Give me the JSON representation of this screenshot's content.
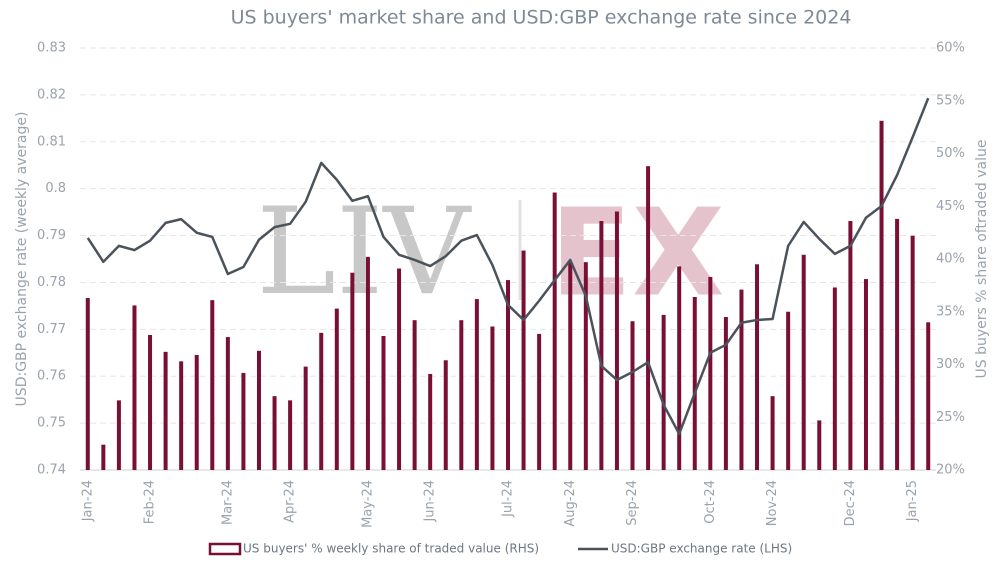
{
  "chart_data": {
    "type": "bar-line",
    "title": "US buyers' market share and USD:GBP exchange rate since 2024",
    "ylabel": "USD:GBP exchange rate (weekly average)",
    "y2label": "US buyers % share oftraded value",
    "watermark": [
      "LIV",
      "EX"
    ],
    "categories": [
      "Jan-24",
      null,
      null,
      null,
      "Feb-24",
      null,
      null,
      null,
      null,
      "Mar-24",
      null,
      null,
      null,
      "Apr-24",
      null,
      null,
      null,
      null,
      "May-24",
      null,
      null,
      null,
      "Jun-24",
      null,
      null,
      null,
      null,
      "Jul-24",
      null,
      null,
      null,
      "Aug-24",
      null,
      null,
      null,
      "Sep-24",
      null,
      null,
      null,
      null,
      "Oct-24",
      null,
      null,
      null,
      "Nov-24",
      null,
      null,
      null,
      null,
      "Dec-24",
      null,
      null,
      null,
      "Jan-25",
      null
    ],
    "series": [
      {
        "name": "US buyers' % weekly share of traded value (RHS)",
        "type": "bar",
        "axis": "y2",
        "color": "#7a0f35",
        "values": [
          36.3,
          22.4,
          26.6,
          35.6,
          32.8,
          31.2,
          30.3,
          30.9,
          36.1,
          32.6,
          29.2,
          31.3,
          27.0,
          26.6,
          29.8,
          33.0,
          35.3,
          38.7,
          40.2,
          32.7,
          39.1,
          34.2,
          29.1,
          30.4,
          34.2,
          36.2,
          33.6,
          38.0,
          40.8,
          32.9,
          46.3,
          39.7,
          39.7,
          43.6,
          44.5,
          34.1,
          48.8,
          34.7,
          39.3,
          36.4,
          38.3,
          34.5,
          37.1,
          39.5,
          27.0,
          35.0,
          40.4,
          24.7,
          37.3,
          43.6,
          38.1,
          53.1,
          43.8,
          42.2,
          34.0
        ]
      },
      {
        "name": "USD:GBP exchange rate (LHS)",
        "type": "line",
        "axis": "y",
        "color": "#4a535c",
        "values": [
          0.7895,
          0.7844,
          0.7878,
          0.7869,
          0.7889,
          0.7927,
          0.7935,
          0.7906,
          0.7897,
          0.7818,
          0.7833,
          0.7891,
          0.7918,
          0.7925,
          0.7972,
          0.8055,
          0.8019,
          0.7974,
          0.7984,
          0.7897,
          0.7859,
          0.7848,
          0.7835,
          0.7856,
          0.7889,
          0.7901,
          0.7837,
          0.7752,
          0.772,
          0.7761,
          0.7805,
          0.7848,
          0.7771,
          0.7622,
          0.7592,
          0.7609,
          0.763,
          0.7539,
          0.7477,
          0.7564,
          0.765,
          0.7667,
          0.7714,
          0.772,
          0.7722,
          0.7878,
          0.7929,
          0.7893,
          0.7861,
          0.7878,
          0.7938,
          0.7963,
          0.8029,
          0.811,
          0.8193
        ]
      }
    ],
    "ylim": [
      0.74,
      0.83
    ],
    "yticks": [
      0.74,
      0.75,
      0.76,
      0.77,
      0.78,
      0.79,
      0.8,
      0.81,
      0.82,
      0.83
    ],
    "y2lim": [
      20,
      60
    ],
    "y2ticks": [
      {
        "value": 20,
        "label": "20%"
      },
      {
        "value": 25,
        "label": "25%"
      },
      {
        "value": 30,
        "label": "30%"
      },
      {
        "value": 35,
        "label": "35%"
      },
      {
        "value": 40,
        "label": "40%"
      },
      {
        "value": 45,
        "label": "45%"
      },
      {
        "value": 50,
        "label": "50%"
      },
      {
        "value": 55,
        "label": "55%"
      },
      {
        "value": 60,
        "label": "60%"
      }
    ],
    "grid": true,
    "legend": "bottom"
  }
}
